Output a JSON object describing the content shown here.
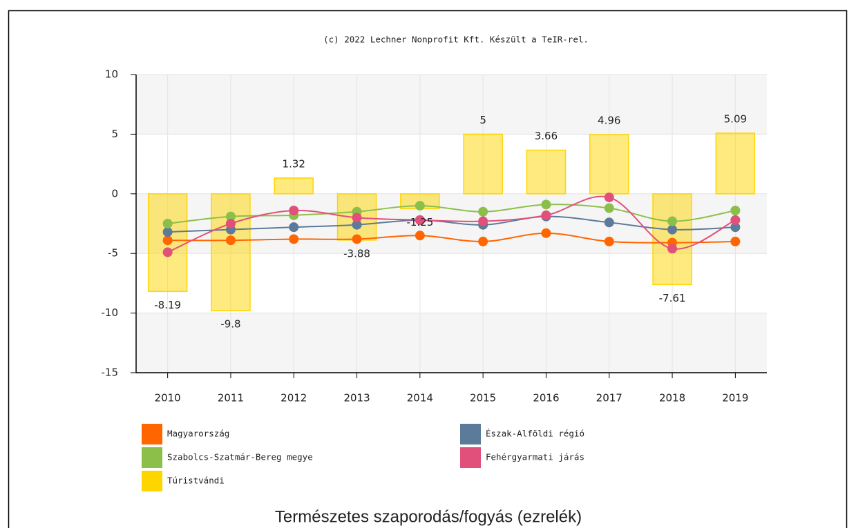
{
  "chart_data": {
    "type": "combo",
    "subtitle": "(c) 2022 Lechner Nonprofit Kft. Készült a TeIR-rel.",
    "title": "Természetes szaporodás/fogyás (ezrelék)",
    "categories": [
      "2010",
      "2011",
      "2012",
      "2013",
      "2014",
      "2015",
      "2016",
      "2017",
      "2018",
      "2019"
    ],
    "ylim": [
      -15,
      10
    ],
    "yticks": [
      -15,
      -10,
      -5,
      0,
      5,
      10
    ],
    "grid": true,
    "series": [
      {
        "name": "Magyarország",
        "type": "line",
        "color": "#ff6600",
        "values": [
          -3.9,
          -3.9,
          -3.8,
          -3.8,
          -3.5,
          -4.0,
          -3.3,
          -4.0,
          -4.1,
          -4.0
        ]
      },
      {
        "name": "Észak-Alföldi régió",
        "type": "line",
        "color": "#5c7a99",
        "values": [
          -3.2,
          -3.0,
          -2.8,
          -2.6,
          -2.2,
          -2.6,
          -1.9,
          -2.4,
          -3.0,
          -2.8
        ]
      },
      {
        "name": "Szabolcs-Szatmár-Bereg megye",
        "type": "line",
        "color": "#8cbf4a",
        "values": [
          -2.5,
          -1.9,
          -1.8,
          -1.5,
          -1.0,
          -1.5,
          -0.9,
          -1.2,
          -2.3,
          -1.4
        ]
      },
      {
        "name": "Fehérgyarmati járás",
        "type": "line",
        "color": "#e0507a",
        "values": [
          -4.9,
          -2.5,
          -1.4,
          -2.0,
          -2.2,
          -2.3,
          -1.8,
          -0.3,
          -4.6,
          -2.2
        ]
      },
      {
        "name": "Túristvándi",
        "type": "bar",
        "color": "#ffd500",
        "values": [
          -8.19,
          -9.8,
          1.32,
          -3.88,
          -1.25,
          5,
          3.66,
          4.96,
          -7.61,
          5.09
        ]
      }
    ]
  }
}
